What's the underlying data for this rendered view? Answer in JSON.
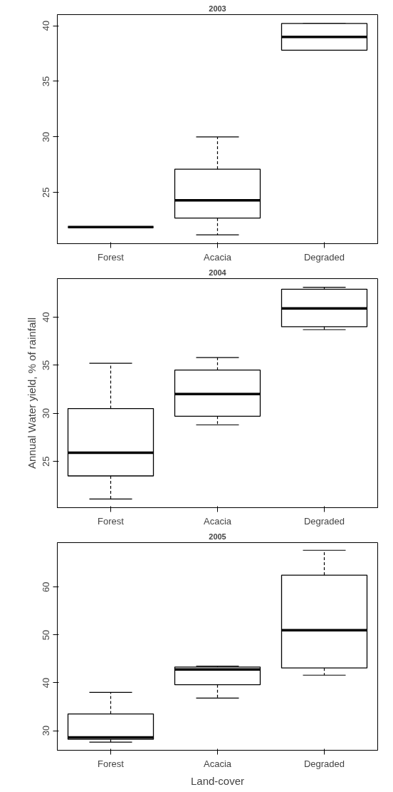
{
  "chart_data": [
    {
      "type": "box",
      "title": "2003",
      "categories": [
        "Forest",
        "Acacia",
        "Degraded"
      ],
      "boxes": [
        {
          "low": 21.9,
          "q1": 21.9,
          "median": 21.9,
          "q3": 21.9,
          "high": 21.9
        },
        {
          "low": 21.2,
          "q1": 22.7,
          "median": 24.3,
          "q3": 27.1,
          "high": 30.0
        },
        {
          "low": 37.8,
          "q1": 37.8,
          "median": 39.0,
          "q3": 40.2,
          "high": 40.2
        }
      ],
      "ylim": [
        20.4,
        41.0
      ],
      "yticks": [
        25,
        30,
        35,
        40
      ],
      "grid": false,
      "line_style": "dashed"
    },
    {
      "type": "box",
      "title": "2004",
      "ylabel": "Annual Water yield, % of rainfall",
      "categories": [
        "Forest",
        "Acacia",
        "Degraded"
      ],
      "boxes": [
        {
          "low": 21.1,
          "q1": 23.5,
          "median": 25.9,
          "q3": 30.5,
          "high": 35.2
        },
        {
          "low": 28.8,
          "q1": 29.7,
          "median": 32.0,
          "q3": 34.5,
          "high": 35.8
        },
        {
          "low": 38.7,
          "q1": 39.0,
          "median": 40.9,
          "q3": 42.9,
          "high": 43.1
        }
      ],
      "ylim": [
        20.2,
        44.0
      ],
      "yticks": [
        25,
        30,
        35,
        40
      ],
      "grid": false,
      "line_style": "dashed"
    },
    {
      "type": "box",
      "title": "2005",
      "xlabel": "Land-cover",
      "categories": [
        "Forest",
        "Acacia",
        "Degraded"
      ],
      "boxes": [
        {
          "low": 27.6,
          "q1": 28.2,
          "median": 28.6,
          "q3": 33.5,
          "high": 38.0
        },
        {
          "low": 36.8,
          "q1": 39.6,
          "median": 42.8,
          "q3": 43.3,
          "high": 43.5
        },
        {
          "low": 41.6,
          "q1": 43.1,
          "median": 51.0,
          "q3": 62.5,
          "high": 67.7
        }
      ],
      "ylim": [
        25.9,
        69.3
      ],
      "yticks": [
        30,
        40,
        50,
        60
      ],
      "grid": false,
      "line_style": "dashed"
    }
  ]
}
